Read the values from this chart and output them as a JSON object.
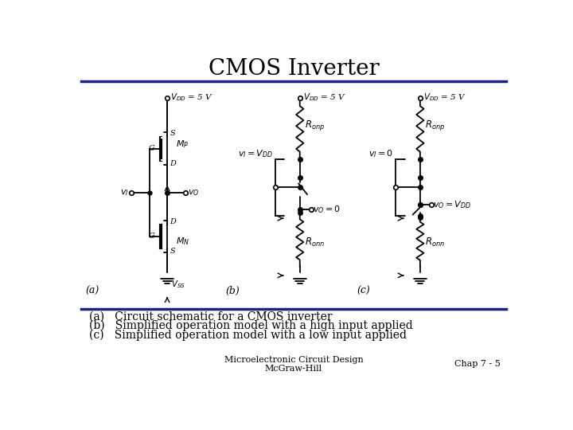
{
  "title": "CMOS Inverter",
  "title_fontsize": 20,
  "title_font": "serif",
  "bg_color": "#ffffff",
  "top_line_color": "#1a237e",
  "bottom_line_color": "#1a237e",
  "footer_left": "Microelectronic Circuit Design\nMcGraw-Hill",
  "footer_right": "Chap 7 - 5",
  "footer_fontsize": 8,
  "caption_a": "(a)   Circuit schematic for a CMOS inverter",
  "caption_b": "(b)   Simplified operation model with a high input applied",
  "caption_c": "(c)   Simplified operation model with a low input applied",
  "caption_fontsize": 10
}
